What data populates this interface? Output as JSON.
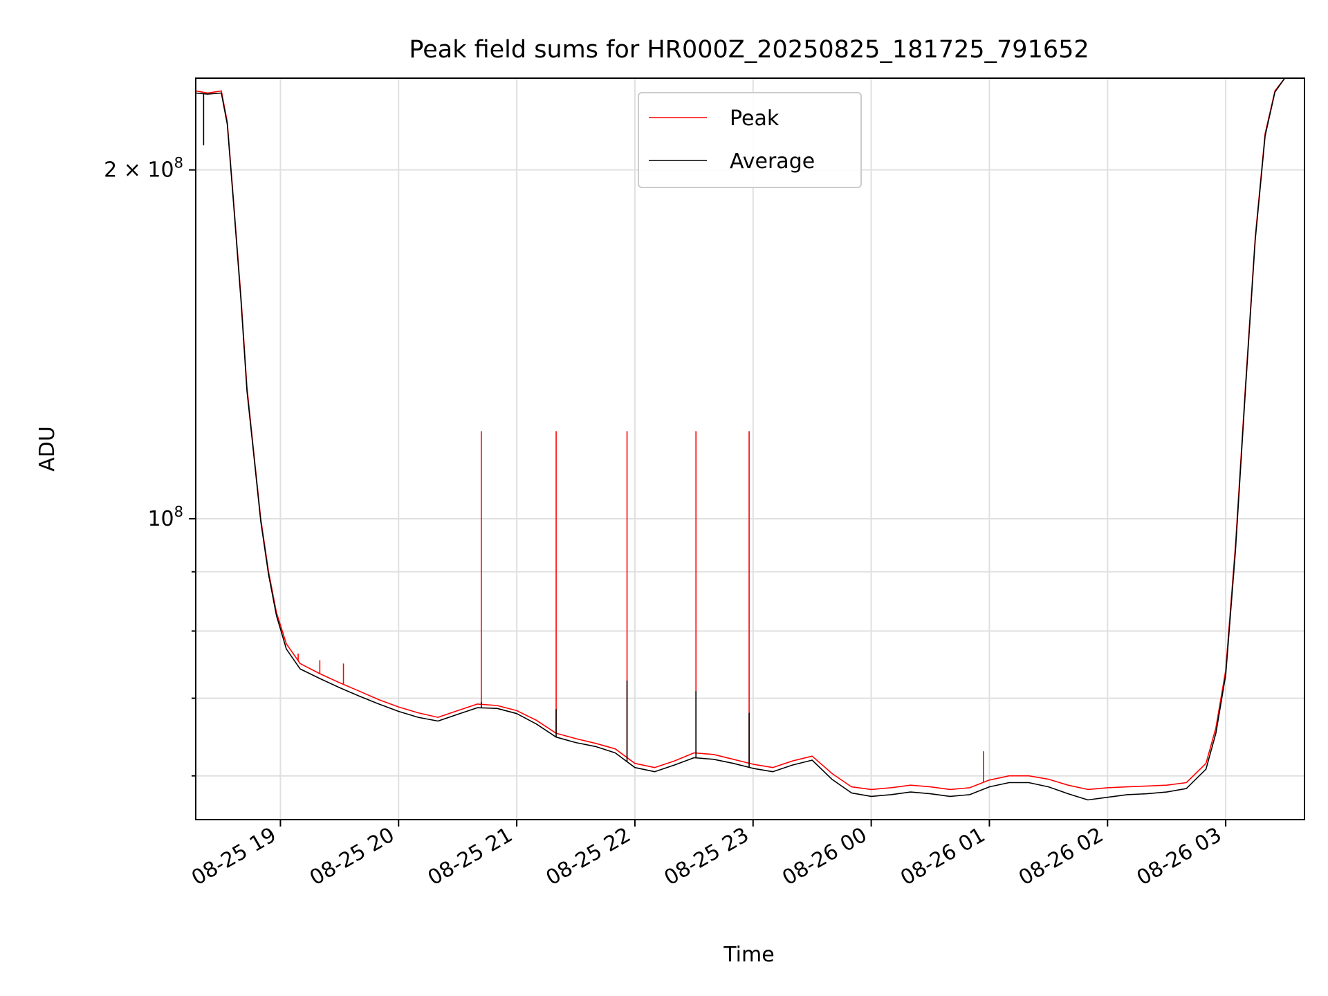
{
  "chart_data": {
    "type": "line",
    "title": "Peak field sums for HR000Z_20250825_181725_791652",
    "xlabel": "Time",
    "ylabel": "ADU",
    "y_scale": "log",
    "grid": true,
    "legend_position": "top-center",
    "xlim": [
      "2025-08-25 18:17",
      "2025-08-26 03:40"
    ],
    "ylim": [
      55000000,
      240000000
    ],
    "x_ticks": [
      {
        "value": "2025-08-25 19:00",
        "label": "08-25 19"
      },
      {
        "value": "2025-08-25 20:00",
        "label": "08-25 20"
      },
      {
        "value": "2025-08-25 21:00",
        "label": "08-25 21"
      },
      {
        "value": "2025-08-25 22:00",
        "label": "08-25 22"
      },
      {
        "value": "2025-08-25 23:00",
        "label": "08-25 23"
      },
      {
        "value": "2025-08-26 00:00",
        "label": "08-26 00"
      },
      {
        "value": "2025-08-26 01:00",
        "label": "08-26 01"
      },
      {
        "value": "2025-08-26 02:00",
        "label": "08-26 02"
      },
      {
        "value": "2025-08-26 03:00",
        "label": "08-26 03"
      }
    ],
    "y_major_ticks": [
      {
        "value": 100000000,
        "label_base": "10",
        "label_exp": "8"
      },
      {
        "value": 200000000,
        "label_base": "2 × 10",
        "label_exp": "8"
      }
    ],
    "y_minor_ticks": [
      60000000,
      70000000,
      80000000,
      90000000
    ],
    "series": [
      {
        "name": "Peak",
        "color": "#ff0000",
        "points": [
          [
            "2025-08-25 18:17",
            234000000
          ],
          [
            "2025-08-25 18:23",
            233000000
          ],
          [
            "2025-08-25 18:30",
            234000000
          ],
          [
            "2025-08-25 18:33",
            220000000
          ],
          [
            "2025-08-25 18:36",
            190000000
          ],
          [
            "2025-08-25 18:40",
            155000000
          ],
          [
            "2025-08-25 18:43",
            130000000
          ],
          [
            "2025-08-25 18:46",
            116000000
          ],
          [
            "2025-08-25 18:50",
            100000000
          ],
          [
            "2025-08-25 18:54",
            90000000
          ],
          [
            "2025-08-25 18:58",
            83000000
          ],
          [
            "2025-08-25 19:03",
            78000000
          ],
          [
            "2025-08-25 19:10",
            75000000
          ],
          [
            "2025-08-25 19:20",
            73500000
          ],
          [
            "2025-08-25 19:30",
            72200000
          ],
          [
            "2025-08-25 19:40",
            71000000
          ],
          [
            "2025-08-25 19:50",
            69800000
          ],
          [
            "2025-08-25 20:00",
            68800000
          ],
          [
            "2025-08-25 20:10",
            68000000
          ],
          [
            "2025-08-25 20:20",
            67400000
          ],
          [
            "2025-08-25 20:30",
            68300000
          ],
          [
            "2025-08-25 20:40",
            69200000
          ],
          [
            "2025-08-25 20:50",
            69000000
          ],
          [
            "2025-08-25 21:00",
            68300000
          ],
          [
            "2025-08-25 21:10",
            67000000
          ],
          [
            "2025-08-25 21:20",
            65300000
          ],
          [
            "2025-08-25 21:30",
            64600000
          ],
          [
            "2025-08-25 21:40",
            64000000
          ],
          [
            "2025-08-25 21:50",
            63300000
          ],
          [
            "2025-08-25 22:00",
            61500000
          ],
          [
            "2025-08-25 22:10",
            61000000
          ],
          [
            "2025-08-25 22:20",
            61800000
          ],
          [
            "2025-08-25 22:30",
            62800000
          ],
          [
            "2025-08-25 22:40",
            62600000
          ],
          [
            "2025-08-25 22:50",
            62000000
          ],
          [
            "2025-08-25 23:00",
            61400000
          ],
          [
            "2025-08-25 23:10",
            61000000
          ],
          [
            "2025-08-25 23:20",
            61800000
          ],
          [
            "2025-08-25 23:30",
            62400000
          ],
          [
            "2025-08-25 23:40",
            60300000
          ],
          [
            "2025-08-25 23:50",
            58700000
          ],
          [
            "2025-08-26 00:00",
            58400000
          ],
          [
            "2025-08-26 00:10",
            58600000
          ],
          [
            "2025-08-26 00:20",
            58900000
          ],
          [
            "2025-08-26 00:30",
            58700000
          ],
          [
            "2025-08-26 00:40",
            58400000
          ],
          [
            "2025-08-26 00:50",
            58600000
          ],
          [
            "2025-08-26 01:00",
            59500000
          ],
          [
            "2025-08-26 01:10",
            60000000
          ],
          [
            "2025-08-26 01:20",
            60000000
          ],
          [
            "2025-08-26 01:30",
            59600000
          ],
          [
            "2025-08-26 01:40",
            58900000
          ],
          [
            "2025-08-26 01:50",
            58400000
          ],
          [
            "2025-08-26 02:00",
            58600000
          ],
          [
            "2025-08-26 02:10",
            58700000
          ],
          [
            "2025-08-26 02:20",
            58800000
          ],
          [
            "2025-08-26 02:30",
            58900000
          ],
          [
            "2025-08-26 02:40",
            59200000
          ],
          [
            "2025-08-26 02:50",
            61500000
          ],
          [
            "2025-08-26 02:55",
            66000000
          ],
          [
            "2025-08-26 03:00",
            74000000
          ],
          [
            "2025-08-26 03:05",
            95000000
          ],
          [
            "2025-08-26 03:10",
            130000000
          ],
          [
            "2025-08-26 03:15",
            175000000
          ],
          [
            "2025-08-26 03:20",
            215000000
          ],
          [
            "2025-08-26 03:25",
            234000000
          ],
          [
            "2025-08-26 03:30",
            240000000
          ]
        ],
        "spikes": [
          [
            "2025-08-25 20:42",
            119000000
          ],
          [
            "2025-08-25 21:20",
            119000000
          ],
          [
            "2025-08-25 21:56",
            119000000
          ],
          [
            "2025-08-25 22:31",
            119000000
          ],
          [
            "2025-08-25 22:58",
            119000000
          ],
          [
            "2025-08-26 00:57",
            63000000
          ],
          [
            "2025-08-25 19:09",
            76500000
          ],
          [
            "2025-08-25 19:20",
            75500000
          ],
          [
            "2025-08-25 19:32",
            75000000
          ]
        ]
      },
      {
        "name": "Average",
        "color": "#000000",
        "points": [
          [
            "2025-08-25 18:17",
            233000000
          ],
          [
            "2025-08-25 18:23",
            232500000
          ],
          [
            "2025-08-25 18:30",
            233000000
          ],
          [
            "2025-08-25 18:33",
            219000000
          ],
          [
            "2025-08-25 18:36",
            189000000
          ],
          [
            "2025-08-25 18:40",
            154000000
          ],
          [
            "2025-08-25 18:43",
            129000000
          ],
          [
            "2025-08-25 18:46",
            115500000
          ],
          [
            "2025-08-25 18:50",
            99500000
          ],
          [
            "2025-08-25 18:54",
            89500000
          ],
          [
            "2025-08-25 18:58",
            82500000
          ],
          [
            "2025-08-25 19:03",
            77200000
          ],
          [
            "2025-08-25 19:10",
            74200000
          ],
          [
            "2025-08-25 19:20",
            72800000
          ],
          [
            "2025-08-25 19:30",
            71500000
          ],
          [
            "2025-08-25 19:40",
            70300000
          ],
          [
            "2025-08-25 19:50",
            69200000
          ],
          [
            "2025-08-25 20:00",
            68200000
          ],
          [
            "2025-08-25 20:10",
            67400000
          ],
          [
            "2025-08-25 20:20",
            66900000
          ],
          [
            "2025-08-25 20:30",
            67800000
          ],
          [
            "2025-08-25 20:40",
            68700000
          ],
          [
            "2025-08-25 20:50",
            68600000
          ],
          [
            "2025-08-25 21:00",
            67900000
          ],
          [
            "2025-08-25 21:10",
            66500000
          ],
          [
            "2025-08-25 21:20",
            64800000
          ],
          [
            "2025-08-25 21:30",
            64100000
          ],
          [
            "2025-08-25 21:40",
            63600000
          ],
          [
            "2025-08-25 21:50",
            62800000
          ],
          [
            "2025-08-25 22:00",
            61000000
          ],
          [
            "2025-08-25 22:10",
            60500000
          ],
          [
            "2025-08-25 22:20",
            61300000
          ],
          [
            "2025-08-25 22:30",
            62200000
          ],
          [
            "2025-08-25 22:40",
            62000000
          ],
          [
            "2025-08-25 22:50",
            61500000
          ],
          [
            "2025-08-25 23:00",
            60900000
          ],
          [
            "2025-08-25 23:10",
            60500000
          ],
          [
            "2025-08-25 23:20",
            61300000
          ],
          [
            "2025-08-25 23:30",
            61900000
          ],
          [
            "2025-08-25 23:40",
            59600000
          ],
          [
            "2025-08-25 23:50",
            58000000
          ],
          [
            "2025-08-26 00:00",
            57600000
          ],
          [
            "2025-08-26 00:10",
            57800000
          ],
          [
            "2025-08-26 00:20",
            58100000
          ],
          [
            "2025-08-26 00:30",
            57900000
          ],
          [
            "2025-08-26 00:40",
            57600000
          ],
          [
            "2025-08-26 00:50",
            57800000
          ],
          [
            "2025-08-26 01:00",
            58700000
          ],
          [
            "2025-08-26 01:10",
            59200000
          ],
          [
            "2025-08-26 01:20",
            59200000
          ],
          [
            "2025-08-26 01:30",
            58700000
          ],
          [
            "2025-08-26 01:40",
            57900000
          ],
          [
            "2025-08-26 01:50",
            57200000
          ],
          [
            "2025-08-26 02:00",
            57500000
          ],
          [
            "2025-08-26 02:10",
            57800000
          ],
          [
            "2025-08-26 02:20",
            57900000
          ],
          [
            "2025-08-26 02:30",
            58100000
          ],
          [
            "2025-08-26 02:40",
            58500000
          ],
          [
            "2025-08-26 02:50",
            60800000
          ],
          [
            "2025-08-26 02:55",
            65300000
          ],
          [
            "2025-08-26 03:00",
            73300000
          ],
          [
            "2025-08-26 03:05",
            94000000
          ],
          [
            "2025-08-26 03:10",
            129000000
          ],
          [
            "2025-08-26 03:15",
            174000000
          ],
          [
            "2025-08-26 03:20",
            214000000
          ],
          [
            "2025-08-26 03:25",
            233500000
          ],
          [
            "2025-08-26 03:30",
            240000000
          ]
        ],
        "spikes": [
          [
            "2025-08-25 18:21",
            210000000
          ],
          [
            "2025-08-25 20:42",
            69500000
          ],
          [
            "2025-08-25 21:20",
            68500000
          ],
          [
            "2025-08-25 21:56",
            72500000
          ],
          [
            "2025-08-25 22:31",
            71000000
          ],
          [
            "2025-08-25 22:58",
            68000000
          ]
        ]
      }
    ]
  }
}
